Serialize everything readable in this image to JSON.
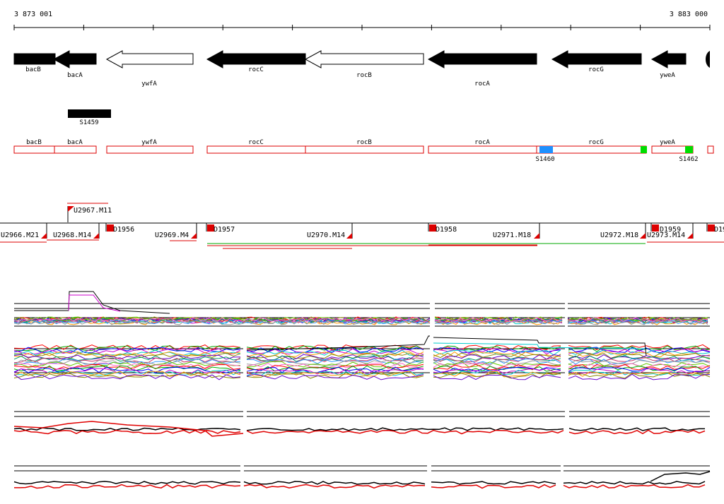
{
  "ruler": {
    "start_label": "3 873 001",
    "end_label": "3 883 000"
  },
  "genes": [
    {
      "name": "bacB",
      "fill": "black",
      "dir": "right"
    },
    {
      "name": "bacA",
      "fill": "black",
      "dir": "left"
    },
    {
      "name": "ywfA",
      "fill": "white",
      "dir": "left"
    },
    {
      "name": "rocC",
      "fill": "black",
      "dir": "left"
    },
    {
      "name": "rocB",
      "fill": "white",
      "dir": "left"
    },
    {
      "name": "rocA",
      "fill": "black",
      "dir": "left"
    },
    {
      "name": "rocG",
      "fill": "black",
      "dir": "left"
    },
    {
      "name": "yweA",
      "fill": "black",
      "dir": "left"
    }
  ],
  "upstream_feature": {
    "label": "S1459",
    "color": "#000000"
  },
  "gene_boxes": [
    "bacB",
    "bacA",
    "ywfA",
    "rocC",
    "rocB",
    "rocA",
    "rocG",
    "yweA"
  ],
  "box_features": [
    {
      "label": "S1460",
      "color": "#1e90ff"
    },
    {
      "label": "S1462",
      "color": "#00dd00"
    }
  ],
  "segments": {
    "upper_label": "U2967.M11",
    "labels": [
      "U2966.M21",
      "U2968.M14",
      "D1956",
      "U2969.M4",
      "D1957",
      "U2970.M14",
      "D1958",
      "U2971.M18",
      "U2972.M18",
      "D1959",
      "U2973.M14",
      "D19"
    ]
  },
  "colors": {
    "gene_box_stroke": "#dd0000",
    "segment_red": "#dd0000",
    "ruler": "#000000",
    "profile_red": "#e00000",
    "profile_black": "#000000",
    "profile_palette": [
      "#ff0000",
      "#00aa00",
      "#0000ff",
      "#cc00cc",
      "#00cccc",
      "#ff9900",
      "#888800",
      "#6600cc",
      "#009966",
      "#cc3366",
      "#3399ff",
      "#999999",
      "#66cc00",
      "#ff66cc"
    ]
  }
}
